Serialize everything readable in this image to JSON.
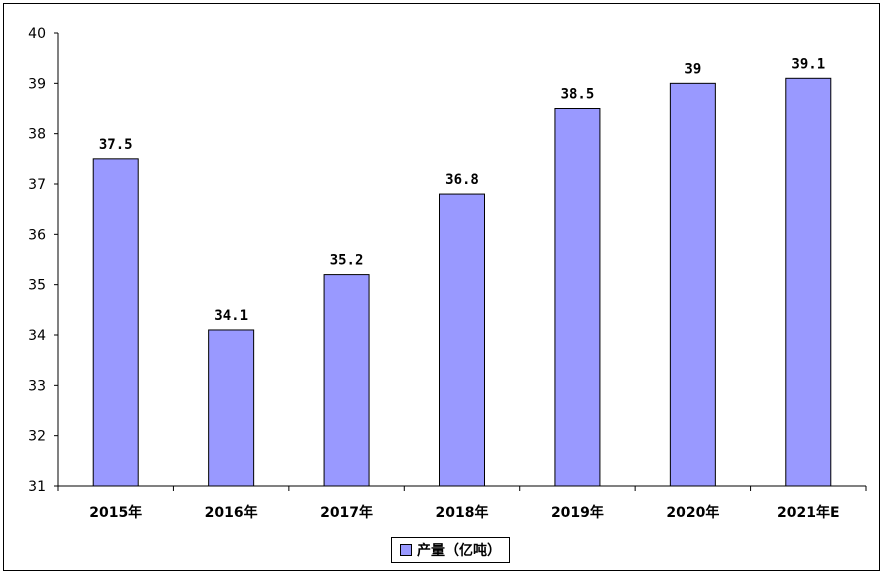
{
  "chart_data": {
    "type": "bar",
    "categories": [
      "2015年",
      "2016年",
      "2017年",
      "2018年",
      "2019年",
      "2020年",
      "2021年E"
    ],
    "series": [
      {
        "name": "产量（亿吨）",
        "values": [
          37.5,
          34.1,
          35.2,
          36.8,
          38.5,
          39,
          39.1
        ],
        "value_labels": [
          "37.5",
          "34.1",
          "35.2",
          "36.8",
          "38.5",
          "39",
          "39.1"
        ],
        "color": "#9999ff"
      }
    ],
    "ylim": [
      31,
      40
    ],
    "yticks": [
      "31",
      "32",
      "33",
      "34",
      "35",
      "36",
      "37",
      "38",
      "39",
      "40"
    ],
    "grid": false,
    "legend_position": "bottom"
  }
}
